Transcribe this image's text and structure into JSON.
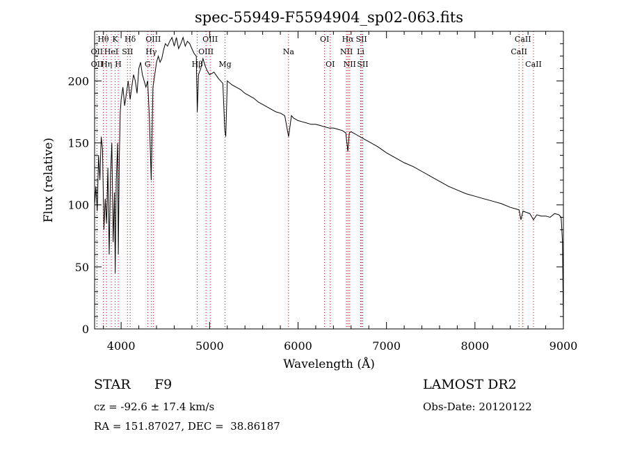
{
  "chart_data": {
    "type": "line",
    "title": "spec-55949-F5594904_sp02-063.fits",
    "xlabel": "Wavelength (Å)",
    "ylabel": "Flux (relative)",
    "xlim": [
      3700,
      9000
    ],
    "ylim": [
      0,
      240
    ],
    "xticks": [
      4000,
      5000,
      6000,
      7000,
      8000,
      9000
    ],
    "yticks": [
      0,
      50,
      100,
      150,
      200
    ],
    "grid": false,
    "line_style": "dotted vertical markers (red) for spectral lines",
    "marker_color": "#cc0000",
    "spectrum_color": "#000000",
    "series": [
      {
        "x": [
          3700,
          3715,
          3730,
          3745,
          3760,
          3775,
          3790,
          3805,
          3820,
          3835,
          3850,
          3865,
          3880,
          3895,
          3910,
          3925,
          3933,
          3945,
          3960,
          3968,
          3980,
          3990,
          4000,
          4020,
          4040,
          4060,
          4080,
          4102,
          4120,
          4140,
          4160,
          4180,
          4200,
          4220,
          4240,
          4260,
          4280,
          4300,
          4320,
          4340,
          4360,
          4380,
          4400,
          4420,
          4440,
          4460,
          4480,
          4500,
          4525,
          4550,
          4575,
          4600,
          4625,
          4650,
          4675,
          4700,
          4725,
          4750,
          4775,
          4800,
          4825,
          4850,
          4861,
          4875,
          4900,
          4925,
          4950,
          4975,
          5000,
          5050,
          5100,
          5150,
          5172,
          5183,
          5200,
          5250,
          5300,
          5350,
          5400,
          5450,
          5500,
          5550,
          5600,
          5650,
          5700,
          5750,
          5800,
          5850,
          5893,
          5925,
          5950,
          6000,
          6050,
          6100,
          6150,
          6200,
          6250,
          6300,
          6350,
          6400,
          6450,
          6500,
          6540,
          6563,
          6580,
          6600,
          6650,
          6700,
          6750,
          6800,
          6900,
          7000,
          7100,
          7200,
          7300,
          7400,
          7500,
          7600,
          7700,
          7800,
          7900,
          8000,
          8100,
          8200,
          8300,
          8400,
          8450,
          8498,
          8520,
          8542,
          8580,
          8620,
          8662,
          8700,
          8750,
          8800,
          8850,
          8900,
          8950,
          8975,
          8990,
          9000
        ],
        "y": [
          100,
          115,
          95,
          140,
          120,
          155,
          145,
          80,
          105,
          85,
          130,
          60,
          125,
          150,
          70,
          110,
          45,
          120,
          150,
          60,
          140,
          175,
          185,
          195,
          180,
          190,
          200,
          185,
          195,
          205,
          200,
          190,
          210,
          215,
          205,
          200,
          195,
          200,
          170,
          120,
          195,
          205,
          215,
          220,
          215,
          218,
          225,
          230,
          228,
          232,
          235,
          228,
          235,
          226,
          230,
          235,
          228,
          232,
          230,
          226,
          222,
          220,
          175,
          205,
          210,
          218,
          212,
          208,
          205,
          207,
          202,
          198,
          160,
          155,
          200,
          197,
          195,
          193,
          190,
          188,
          186,
          183,
          181,
          179,
          177,
          175,
          174,
          172,
          155,
          172,
          170,
          168,
          167,
          166,
          165,
          165,
          164,
          163,
          162,
          162,
          161,
          160,
          158,
          143,
          158,
          159,
          157,
          155,
          153,
          151,
          147,
          142,
          138,
          134,
          131,
          127,
          123,
          119,
          115,
          112,
          109,
          107,
          105,
          103,
          101,
          98,
          97,
          96,
          88,
          95,
          94,
          93,
          88,
          92,
          91,
          91,
          90,
          93,
          92,
          90,
          70,
          0
        ]
      }
    ],
    "lines": [
      {
        "x": 3726,
        "label": "OII",
        "row": 1
      },
      {
        "x": 3727,
        "label": "OII",
        "row": 2
      },
      {
        "x": 3798,
        "label": "Hθ",
        "row": 0
      },
      {
        "x": 3835,
        "label": "Hη",
        "row": 2
      },
      {
        "x": 3889,
        "label": "HeI",
        "row": 1
      },
      {
        "x": 3933,
        "label": "K",
        "row": 0
      },
      {
        "x": 3968,
        "label": "H",
        "row": 2
      },
      {
        "x": 4072,
        "label": "SII",
        "row": 1
      },
      {
        "x": 4102,
        "label": "Hδ",
        "row": 0
      },
      {
        "x": 4300,
        "label": "G",
        "row": 2
      },
      {
        "x": 4340,
        "label": "Hγ",
        "row": 1
      },
      {
        "x": 4363,
        "label": "OIII",
        "row": 0
      },
      {
        "x": 4861,
        "label": "Hβ",
        "row": 2
      },
      {
        "x": 4959,
        "label": "OIII",
        "row": 1
      },
      {
        "x": 5007,
        "label": "OIII",
        "row": 0
      },
      {
        "x": 5175,
        "label": "Mg",
        "row": 2
      },
      {
        "x": 5893,
        "label": "Na",
        "row": 1
      },
      {
        "x": 6300,
        "label": "OI",
        "row": 0
      },
      {
        "x": 6364,
        "label": "OI",
        "row": 2
      },
      {
        "x": 6548,
        "label": "NII",
        "row": 1
      },
      {
        "x": 6563,
        "label": "Hα",
        "row": 0
      },
      {
        "x": 6584,
        "label": "NII",
        "row": 2
      },
      {
        "x": 6708,
        "label": "Li",
        "row": 1
      },
      {
        "x": 6717,
        "label": "SII",
        "row": 0
      },
      {
        "x": 6731,
        "label": "SII",
        "row": 2
      },
      {
        "x": 8498,
        "label": "CaII",
        "row": 1
      },
      {
        "x": 8542,
        "label": "CaII",
        "row": 0
      },
      {
        "x": 8662,
        "label": "CaII",
        "row": 2
      }
    ]
  },
  "info": {
    "object_class": "STAR",
    "subclass": "F9",
    "survey": "LAMOST DR2",
    "redshift": "cz = -92.6 ± 17.4 km/s",
    "obs_date": "Obs-Date: 20120122",
    "coordinates": "RA = 151.87027, DEC =  38.86187"
  }
}
